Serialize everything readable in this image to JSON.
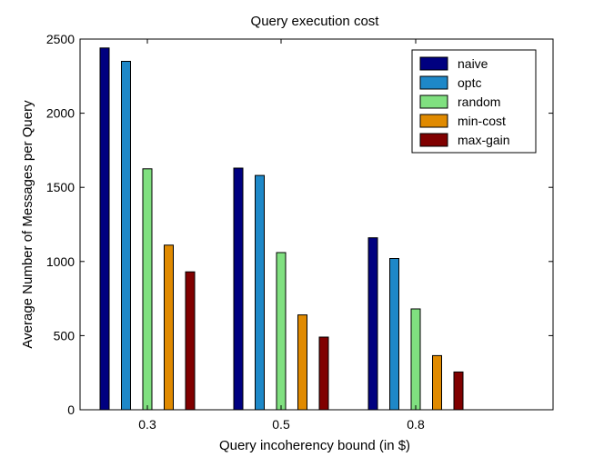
{
  "chart_data": {
    "type": "bar",
    "title": "Query execution cost",
    "xlabel": "Query incoherency bound (in $)",
    "ylabel": "Average Number of Messages per Query",
    "categories": [
      "0.3",
      "0.5",
      "0.8"
    ],
    "ylim": [
      0,
      2500
    ],
    "yticks": [
      0,
      500,
      1000,
      1500,
      2000,
      2500
    ],
    "grid": false,
    "legend_position": "top-right",
    "series": [
      {
        "name": "naive",
        "color": "#000080",
        "values": [
          2440,
          1630,
          1160
        ]
      },
      {
        "name": "optc",
        "color": "#1e88c8",
        "values": [
          2350,
          1580,
          1020
        ]
      },
      {
        "name": "random",
        "color": "#80e080",
        "values": [
          1625,
          1060,
          680
        ]
      },
      {
        "name": "min-cost",
        "color": "#e08a00",
        "values": [
          1110,
          640,
          365
        ]
      },
      {
        "name": "max-gain",
        "color": "#800000",
        "values": [
          930,
          490,
          255
        ]
      }
    ]
  }
}
